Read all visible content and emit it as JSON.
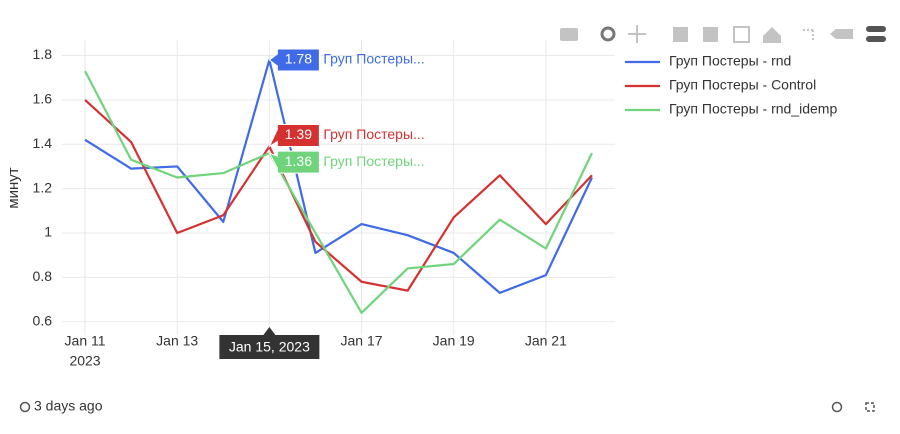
{
  "chart_data": {
    "type": "line",
    "y_label": "минут",
    "x": [
      "2023-01-11",
      "2023-01-12",
      "2023-01-13",
      "2023-01-14",
      "2023-01-15",
      "2023-01-16",
      "2023-01-17",
      "2023-01-18",
      "2023-01-19",
      "2023-01-20",
      "2023-01-21",
      "2023-01-22"
    ],
    "series": [
      {
        "name": "Груп Постеры - rnd",
        "color": "#3f6be8",
        "values": [
          1.42,
          1.29,
          1.3,
          1.05,
          1.78,
          0.91,
          1.04,
          0.99,
          0.91,
          0.73,
          0.81,
          1.25
        ]
      },
      {
        "name": "Груп Постеры - Control",
        "color": "#d63131",
        "values": [
          1.6,
          1.41,
          1.0,
          1.08,
          1.39,
          0.96,
          0.78,
          0.74,
          1.07,
          1.26,
          1.04,
          1.26
        ]
      },
      {
        "name": "Груп Постеры - rnd_idemp",
        "color": "#6fd47b",
        "values": [
          1.73,
          1.33,
          1.25,
          1.27,
          1.36,
          1.0,
          0.64,
          0.84,
          0.86,
          1.06,
          0.93,
          1.36
        ]
      }
    ],
    "xlim": [
      "2023-01-10T12:00",
      "2023-01-22T12:00"
    ],
    "xticks": [
      {
        "value": "2023-01-11",
        "label": "Jan 11"
      },
      {
        "value": "2023-01-13",
        "label": "Jan 13"
      },
      {
        "value": "2023-01-15",
        "label": "Jan 15"
      },
      {
        "value": "2023-01-17",
        "label": "Jan 17"
      },
      {
        "value": "2023-01-19",
        "label": "Jan 19"
      },
      {
        "value": "2023-01-21",
        "label": "Jan 21"
      }
    ],
    "x_year_label": "2023",
    "ylim": [
      0.54,
      1.87
    ],
    "yticks": [
      0.6,
      0.8,
      1,
      1.2,
      1.4,
      1.6,
      1.8
    ],
    "grid": true,
    "legend": "top-right",
    "hover": {
      "x": "2023-01-15",
      "x_label": "Jan 15, 2023",
      "names": [
        "Груп Постеры...",
        "Груп Постеры...",
        "Груп Постеры..."
      ]
    }
  },
  "footer": {
    "updated": "3 days ago"
  }
}
